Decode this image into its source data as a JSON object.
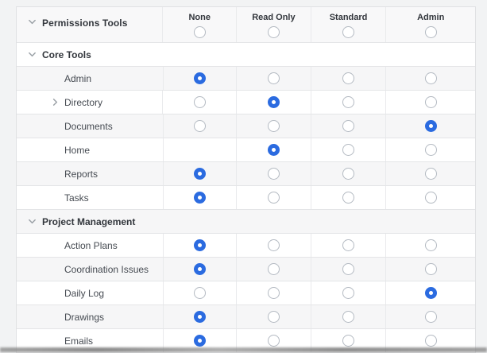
{
  "table": {
    "header": {
      "label": "Permissions Tools",
      "columns": [
        {
          "label": "None",
          "radio": "unselected"
        },
        {
          "label": "Read Only",
          "radio": "unselected"
        },
        {
          "label": "Standard",
          "radio": "unselected"
        },
        {
          "label": "Admin",
          "radio": "unselected"
        }
      ]
    },
    "sections": [
      {
        "label": "Core Tools",
        "rows": [
          {
            "label": "Admin",
            "expandable": false,
            "cells": [
              "selected",
              "unselected",
              "unselected",
              "unselected"
            ]
          },
          {
            "label": "Directory",
            "expandable": true,
            "cells": [
              "unselected",
              "selected",
              "unselected",
              "unselected"
            ]
          },
          {
            "label": "Documents",
            "expandable": false,
            "cells": [
              "unselected",
              "unselected",
              "unselected",
              "selected"
            ]
          },
          {
            "label": "Home",
            "expandable": false,
            "cells": [
              "absent",
              "selected",
              "unselected",
              "unselected"
            ]
          },
          {
            "label": "Reports",
            "expandable": false,
            "cells": [
              "selected",
              "unselected",
              "unselected",
              "unselected"
            ]
          },
          {
            "label": "Tasks",
            "expandable": false,
            "cells": [
              "selected",
              "unselected",
              "unselected",
              "unselected"
            ]
          }
        ]
      },
      {
        "label": "Project Management",
        "rows": [
          {
            "label": "Action Plans",
            "expandable": false,
            "cells": [
              "selected",
              "unselected",
              "unselected",
              "unselected"
            ]
          },
          {
            "label": "Coordination Issues",
            "expandable": false,
            "cells": [
              "selected",
              "unselected",
              "unselected",
              "unselected"
            ]
          },
          {
            "label": "Daily Log",
            "expandable": false,
            "cells": [
              "unselected",
              "unselected",
              "unselected",
              "selected"
            ]
          },
          {
            "label": "Drawings",
            "expandable": false,
            "cells": [
              "selected",
              "unselected",
              "unselected",
              "unselected"
            ]
          },
          {
            "label": "Emails",
            "expandable": false,
            "cells": [
              "selected",
              "unselected",
              "unselected",
              "unselected"
            ]
          }
        ]
      }
    ]
  },
  "colors": {
    "accent_blue": "#2b6be0",
    "radio_border_gray": "#b4bac2",
    "stripe_gray": "#f6f6f7",
    "header_gray": "#f8f8f9",
    "page_background": "#f2f3f4",
    "border_gray": "#e4e5e7"
  }
}
